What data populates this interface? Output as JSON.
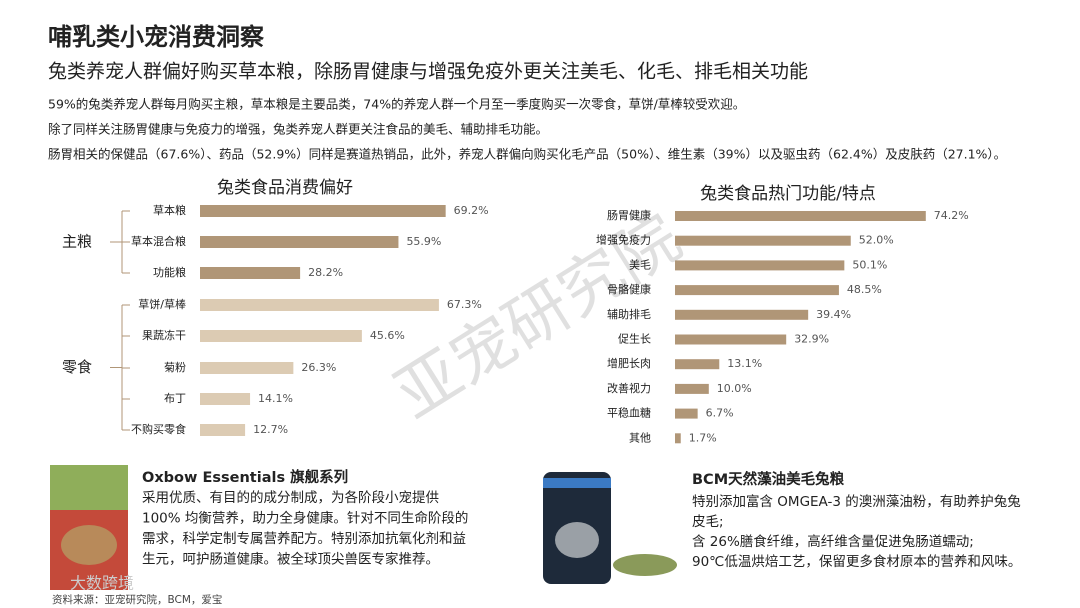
{
  "header": {
    "title": "哺乳类小宠消费洞察",
    "subtitle": "兔类养宠人群偏好购买草本粮，除肠胃健康与增强免疫外更关注美毛、化毛、排毛相关功能"
  },
  "paragraphs": [
    "59%的兔类养宠人群每月购买主粮，草本粮是主要品类，74%的养宠人群一个月至一季度购买一次零食，草饼/草棒较受欢迎。",
    "除了同样关注肠胃健康与免疫力的增强，兔类养宠人群更关注食品的美毛、辅助排毛功能。",
    "肠胃相关的保健品（67.6%）、药品（52.9%）同样是赛道热销品，此外，养宠人群偏向购买化毛产品（50%）、维生素（39%）以及驱虫药（62.4%）及皮肤药（27.1%）。"
  ],
  "chart_data": [
    {
      "type": "bar",
      "orientation": "horizontal",
      "title": "兔类食品消费偏好",
      "groups": [
        {
          "name": "主粮",
          "color": "#b09677",
          "categories": [
            "草本粮",
            "草本混合粮",
            "功能粮"
          ],
          "values": [
            69.2,
            55.9,
            28.2
          ],
          "value_labels": [
            "69.2%",
            "55.9%",
            "28.2%"
          ]
        },
        {
          "name": "零食",
          "color": "#dccbb3",
          "categories": [
            "草饼/草棒",
            "果蔬冻干",
            "菊粉",
            "布丁",
            "不购买零食"
          ],
          "values": [
            67.3,
            45.6,
            26.3,
            14.1,
            12.7
          ],
          "value_labels": [
            "67.3%",
            "45.6%",
            "26.3%",
            "14.1%",
            "12.7%"
          ]
        }
      ]
    },
    {
      "type": "bar",
      "orientation": "horizontal",
      "title": "兔类食品热门功能/特点",
      "color": "#b09677",
      "categories": [
        "肠胃健康",
        "增强免疫力",
        "美毛",
        "骨骼健康",
        "辅助排毛",
        "促生长",
        "增肥长肉",
        "改善视力",
        "平稳血糖",
        "其他"
      ],
      "values": [
        74.2,
        52.0,
        50.1,
        48.5,
        39.4,
        32.9,
        13.1,
        10.0,
        6.7,
        1.7
      ],
      "value_labels": [
        "74.2%",
        "52.0%",
        "50.1%",
        "48.5%",
        "39.4%",
        "32.9%",
        "13.1%",
        "10.0%",
        "6.7%",
        "1.7%"
      ]
    }
  ],
  "products": [
    {
      "title": "Oxbow Essentials 旗舰系列",
      "lines": [
        "采用优质、有目的的成分制成，为各阶段小宠提供",
        "100% 均衡营养，助力全身健康。针对不同生命阶段的",
        "需求，科学定制专属营养配方。特别添加抗氧化剂和益",
        "生元，呵护肠道健康。被全球顶尖兽医专家推荐。"
      ]
    },
    {
      "title": "BCM天然藻油美毛兔粮",
      "lines": [
        "特别添加富含 OMGEA-3 的澳洲藻油粉，有助养护兔兔",
        "皮毛;",
        "含 26%膳食纤维，高纤维含量促进兔肠道蠕动;",
        "90℃低温烘焙工艺，保留更多食材原本的营养和风味。"
      ]
    }
  ],
  "source": "资料来源：亚宠研究院，BCM，爱宝",
  "watermark": "亚宠研究院",
  "logo": "大数跨境"
}
